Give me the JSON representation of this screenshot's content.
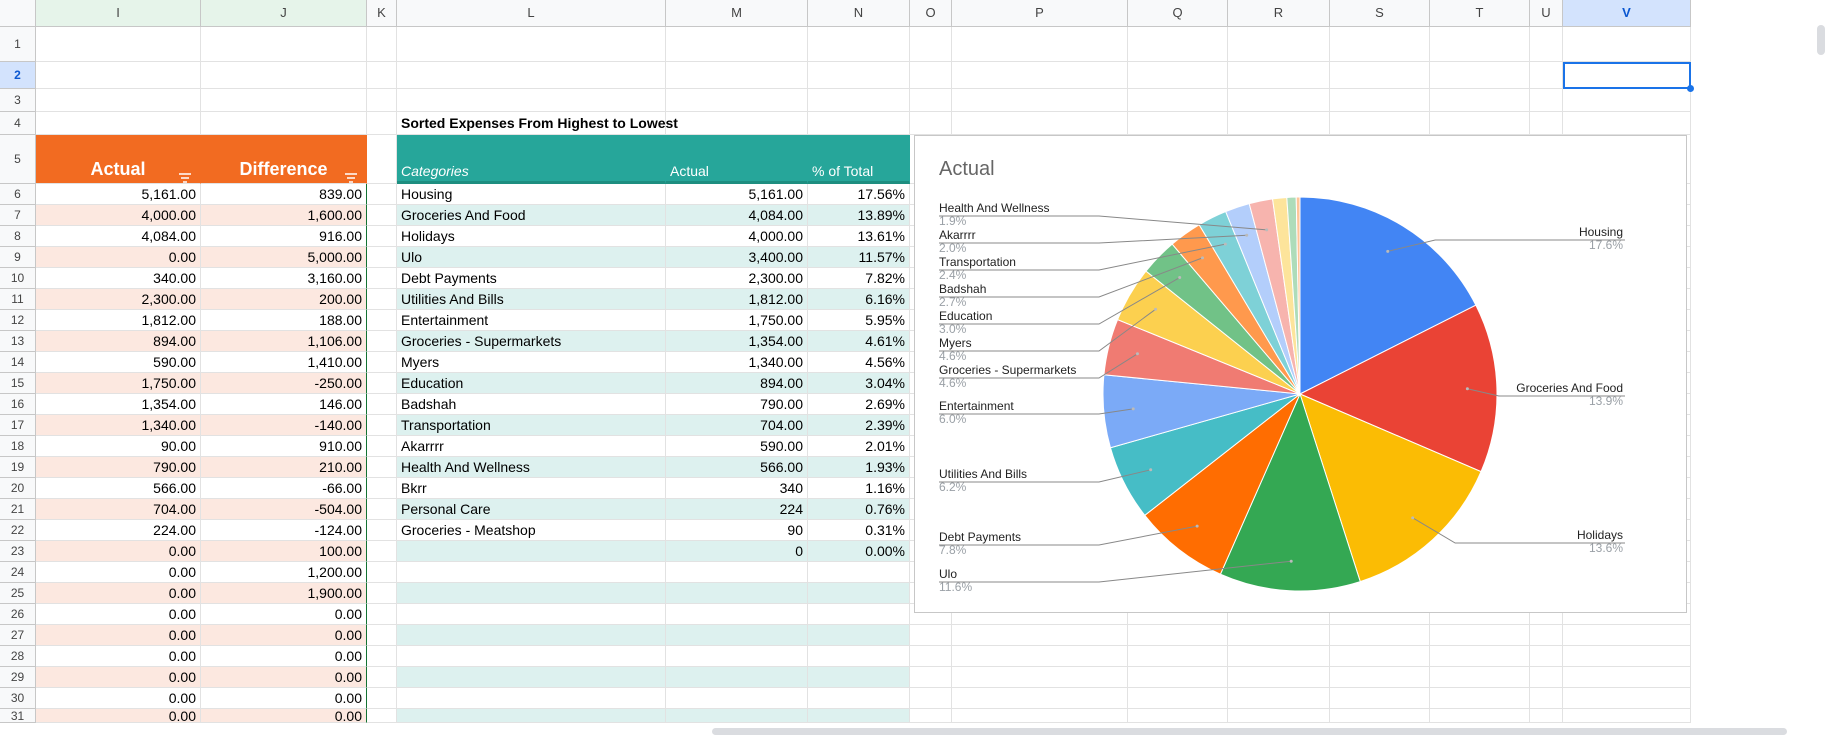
{
  "columns": [
    "I",
    "J",
    "K",
    "L",
    "M",
    "N",
    "O",
    "P",
    "Q",
    "R",
    "S",
    "T",
    "U",
    "V"
  ],
  "rows": [
    "1",
    "2",
    "3",
    "4",
    "5",
    "6",
    "7",
    "8",
    "9",
    "10",
    "11",
    "12",
    "13",
    "14",
    "15",
    "16",
    "17",
    "18",
    "19",
    "20",
    "21",
    "22",
    "23",
    "24",
    "25",
    "26",
    "27",
    "28",
    "29",
    "30",
    "31"
  ],
  "left_table": {
    "header_actual": "Actual",
    "header_difference": "Difference",
    "actual": [
      "5,161.00",
      "4,000.00",
      "4,084.00",
      "0.00",
      "340.00",
      "2,300.00",
      "1,812.00",
      "894.00",
      "590.00",
      "1,750.00",
      "1,354.00",
      "1,340.00",
      "90.00",
      "790.00",
      "566.00",
      "704.00",
      "224.00",
      "0.00",
      "0.00",
      "0.00",
      "0.00",
      "0.00",
      "0.00",
      "0.00",
      "0.00",
      "0.00"
    ],
    "difference": [
      "839.00",
      "1,600.00",
      "916.00",
      "5,000.00",
      "3,160.00",
      "200.00",
      "188.00",
      "1,106.00",
      "1,410.00",
      "-250.00",
      "146.00",
      "-140.00",
      "910.00",
      "210.00",
      "-66.00",
      "-504.00",
      "-124.00",
      "100.00",
      "1,200.00",
      "1,900.00",
      "0.00",
      "0.00",
      "0.00",
      "0.00",
      "0.00",
      "0.00"
    ]
  },
  "sorted_table": {
    "title": "Sorted Expenses From Highest to Lowest",
    "header_categories": "Categories",
    "header_actual": "Actual",
    "header_pct": "% of Total",
    "rows": [
      {
        "category": "Housing",
        "actual": "5,161.00",
        "pct": "17.56%"
      },
      {
        "category": "Groceries And Food",
        "actual": "4,084.00",
        "pct": "13.89%"
      },
      {
        "category": "Holidays",
        "actual": "4,000.00",
        "pct": "13.61%"
      },
      {
        "category": "Ulo",
        "actual": "3,400.00",
        "pct": "11.57%"
      },
      {
        "category": "Debt Payments",
        "actual": "2,300.00",
        "pct": "7.82%"
      },
      {
        "category": "Utilities And Bills",
        "actual": "1,812.00",
        "pct": "6.16%"
      },
      {
        "category": "Entertainment",
        "actual": "1,750.00",
        "pct": "5.95%"
      },
      {
        "category": "Groceries - Supermarkets",
        "actual": "1,354.00",
        "pct": "4.61%"
      },
      {
        "category": "Myers",
        "actual": "1,340.00",
        "pct": "4.56%"
      },
      {
        "category": "Education",
        "actual": "894.00",
        "pct": "3.04%"
      },
      {
        "category": "Badshah",
        "actual": "790.00",
        "pct": "2.69%"
      },
      {
        "category": "Transportation",
        "actual": "704.00",
        "pct": "2.39%"
      },
      {
        "category": "Akarrrr",
        "actual": "590.00",
        "pct": "2.01%"
      },
      {
        "category": "Health And Wellness",
        "actual": "566.00",
        "pct": "1.93%"
      },
      {
        "category": "Bkrr",
        "actual": "340",
        "pct": "1.16%"
      },
      {
        "category": "Personal Care",
        "actual": "224",
        "pct": "0.76%"
      },
      {
        "category": "Groceries - Meatshop",
        "actual": "90",
        "pct": "0.31%"
      },
      {
        "category": "",
        "actual": "0",
        "pct": "0.00%"
      }
    ]
  },
  "chart_data": {
    "type": "pie",
    "title": "Actual",
    "categories": [
      "Housing",
      "Groceries And Food",
      "Holidays",
      "Ulo",
      "Debt Payments",
      "Utilities And Bills",
      "Entertainment",
      "Groceries - Supermarkets",
      "Myers",
      "Education",
      "Badshah",
      "Transportation",
      "Akarrrr",
      "Health And Wellness",
      "Bkrr",
      "Personal Care",
      "Groceries - Meatshop"
    ],
    "values": [
      5161,
      4084,
      4000,
      3400,
      2300,
      1812,
      1750,
      1354,
      1340,
      894,
      790,
      704,
      590,
      566,
      340,
      224,
      90
    ],
    "labels_shown": [
      {
        "name": "Housing",
        "pct": "17.6%"
      },
      {
        "name": "Groceries And Food",
        "pct": "13.9%"
      },
      {
        "name": "Holidays",
        "pct": "13.6%"
      },
      {
        "name": "Ulo",
        "pct": "11.6%"
      },
      {
        "name": "Debt Payments",
        "pct": "7.8%"
      },
      {
        "name": "Utilities And Bills",
        "pct": "6.2%"
      },
      {
        "name": "Entertainment",
        "pct": "6.0%"
      },
      {
        "name": "Groceries - Supermarkets",
        "pct": "4.6%"
      },
      {
        "name": "Myers",
        "pct": "4.6%"
      },
      {
        "name": "Education",
        "pct": "3.0%"
      },
      {
        "name": "Badshah",
        "pct": "2.7%"
      },
      {
        "name": "Transportation",
        "pct": "2.4%"
      },
      {
        "name": "Akarrrr",
        "pct": "2.0%"
      },
      {
        "name": "Health And Wellness",
        "pct": "1.9%"
      }
    ],
    "colors": [
      "#4285f4",
      "#ea4335",
      "#fbbc04",
      "#34a853",
      "#ff6d01",
      "#46bdc6",
      "#7baaf7",
      "#f07b72",
      "#fcd04f",
      "#71c287",
      "#ff994d",
      "#7ed1d7",
      "#b3cefb",
      "#f7b4ae",
      "#fde49b",
      "#aedcba",
      "#ffc599"
    ]
  },
  "colors": {
    "orange_header": "#f26b21",
    "teal_header": "#26a69a",
    "orange_band": "#fce8e0",
    "teal_band": "#ddf1ef",
    "selection": "#1a73e8"
  }
}
